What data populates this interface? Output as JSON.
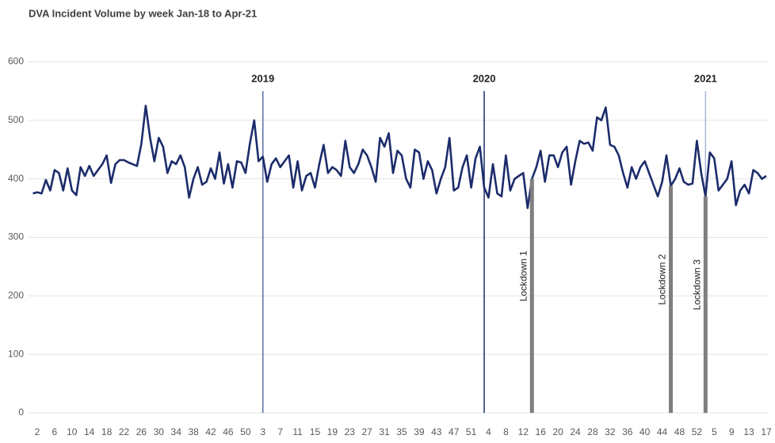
{
  "chart_data": {
    "type": "line",
    "title": "DVA Incident Volume by week Jan-18 to Apr-21",
    "categories": [
      null,
      "2",
      null,
      null,
      null,
      "6",
      null,
      null,
      null,
      "10",
      null,
      null,
      null,
      "14",
      null,
      null,
      null,
      "18",
      null,
      null,
      null,
      "22",
      null,
      null,
      null,
      "26",
      null,
      null,
      null,
      "30",
      null,
      null,
      null,
      "34",
      null,
      null,
      null,
      "38",
      null,
      null,
      null,
      "42",
      null,
      null,
      null,
      "46",
      null,
      null,
      null,
      "50",
      null,
      null,
      null,
      "3",
      null,
      null,
      null,
      "7",
      null,
      null,
      null,
      "11",
      null,
      null,
      null,
      "15",
      null,
      null,
      null,
      "19",
      null,
      null,
      null,
      "23",
      null,
      null,
      null,
      "27",
      null,
      null,
      null,
      "31",
      null,
      null,
      null,
      "35",
      null,
      null,
      null,
      "39",
      null,
      null,
      null,
      "43",
      null,
      null,
      null,
      "47",
      null,
      null,
      null,
      "51",
      null,
      null,
      null,
      "4",
      null,
      null,
      null,
      "8",
      null,
      null,
      null,
      "12",
      null,
      null,
      null,
      "16",
      null,
      null,
      null,
      "20",
      null,
      null,
      null,
      "24",
      null,
      null,
      null,
      "28",
      null,
      null,
      null,
      "32",
      null,
      null,
      null,
      "36",
      null,
      null,
      null,
      "40",
      null,
      null,
      null,
      "44",
      null,
      null,
      null,
      "48",
      null,
      null,
      null,
      "52",
      null,
      null,
      null,
      "5",
      null,
      null,
      null,
      "9",
      null,
      null,
      null,
      "13",
      null,
      null,
      null,
      "17"
    ],
    "series": [
      {
        "color": "#1c2c6b",
        "values": [
          375,
          377,
          375,
          398,
          380,
          415,
          410,
          380,
          418,
          380,
          372,
          420,
          405,
          422,
          405,
          415,
          425,
          440,
          393,
          425,
          432,
          432,
          428,
          425,
          422,
          460,
          525,
          470,
          430,
          470,
          455,
          410,
          430,
          425,
          440,
          420,
          368,
          400,
          420,
          390,
          395,
          418,
          400,
          445,
          392,
          425,
          385,
          430,
          428,
          410,
          460,
          500,
          430,
          438,
          395,
          425,
          435,
          420,
          430,
          440,
          385,
          430,
          380,
          405,
          410,
          385,
          425,
          458,
          410,
          420,
          415,
          405,
          465,
          420,
          410,
          425,
          450,
          440,
          420,
          395,
          470,
          455,
          478,
          410,
          448,
          440,
          400,
          385,
          450,
          445,
          400,
          430,
          415,
          375,
          400,
          420,
          470,
          380,
          385,
          420,
          440,
          385,
          435,
          455,
          385,
          368,
          425,
          375,
          370,
          440,
          380,
          400,
          405,
          410,
          350,
          400,
          420,
          448,
          395,
          440,
          440,
          420,
          445,
          455,
          390,
          430,
          465,
          460,
          462,
          448,
          505,
          500,
          522,
          458,
          455,
          440,
          410,
          385,
          420,
          400,
          420,
          430,
          410,
          390,
          370,
          395,
          440,
          388,
          400,
          418,
          395,
          390,
          392,
          465,
          410,
          370,
          445,
          435,
          380,
          390,
          400,
          430,
          355,
          380,
          390,
          375,
          415,
          410,
          400,
          405
        ]
      }
    ],
    "ylim": [
      0,
      600
    ],
    "yticks": [
      0,
      100,
      200,
      300,
      400,
      500,
      600
    ],
    "grid": true,
    "annotations": [
      {
        "label": "2019",
        "at": 53,
        "kind": "year",
        "color": "#5b6fa6"
      },
      {
        "label": "2020",
        "at": 104,
        "kind": "year",
        "color": "#1c2c6b"
      },
      {
        "label": "2021",
        "at": 155,
        "kind": "year",
        "color": "#a9b7d6"
      },
      {
        "label": "Lockdown 1",
        "at": 115,
        "kind": "lockdown",
        "color": "#7f7f7f"
      },
      {
        "label": "Lockdown 2",
        "at": 147,
        "kind": "lockdown",
        "color": "#7f7f7f"
      },
      {
        "label": "Lockdown 3",
        "at": 155,
        "kind": "lockdown",
        "color": "#7f7f7f"
      }
    ]
  }
}
